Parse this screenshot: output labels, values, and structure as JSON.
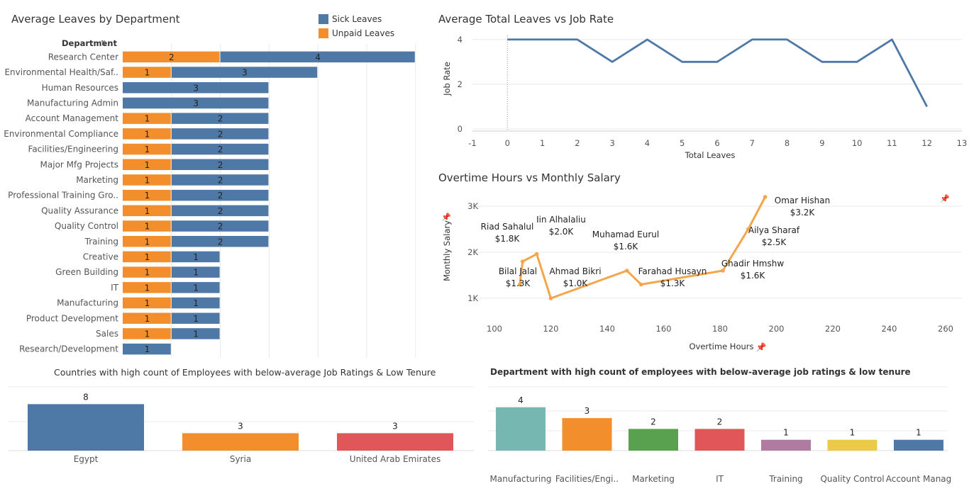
{
  "colors": {
    "sick": "#4e79a7",
    "unpaid": "#f28e2b",
    "line": "#4e79a7",
    "scatter": "#f5a54a",
    "grid": "#e8e8e8",
    "text": "#333333",
    "axis_text": "#555555"
  },
  "icons": {
    "pin": "pin-icon",
    "sort": "sort-icon"
  },
  "chart_data": [
    {
      "id": "leaves",
      "type": "bar",
      "orientation": "horizontal",
      "stacked": true,
      "title": "Average Leaves by Department",
      "ylabel": "Department",
      "legend_position": "top-right",
      "categories": [
        "Research Center",
        "Environmental Health/Saf..",
        "Human Resources",
        "Manufacturing Admin",
        "Account Management",
        "Environmental Compliance",
        "Facilities/Engineering",
        "Major Mfg Projects",
        "Marketing",
        "Professional Training Gro..",
        "Quality Assurance",
        "Quality Control",
        "Training",
        "Creative",
        "Green Building",
        "IT",
        "Manufacturing",
        "Product Development",
        "Sales",
        "Research/Development"
      ],
      "series": [
        {
          "name": "Unpaid Leaves",
          "color": "#f28e2b",
          "values": [
            2,
            1,
            0,
            0,
            1,
            1,
            1,
            1,
            1,
            1,
            1,
            1,
            1,
            1,
            1,
            1,
            1,
            1,
            1,
            0
          ]
        },
        {
          "name": "Sick Leaves",
          "color": "#4e79a7",
          "values": [
            4,
            3,
            3,
            3,
            2,
            2,
            2,
            2,
            2,
            2,
            2,
            2,
            2,
            1,
            1,
            1,
            1,
            1,
            1,
            1
          ]
        }
      ],
      "xlim": [
        0,
        6
      ]
    },
    {
      "id": "jobrate",
      "type": "line",
      "title": "Average Total Leaves vs Job Rate",
      "xlabel": "Total Leaves",
      "ylabel": "Job Rate",
      "x": [
        0,
        1,
        2,
        3,
        4,
        5,
        6,
        7,
        8,
        9,
        10,
        11,
        12
      ],
      "y": [
        4,
        4,
        4,
        3,
        4,
        3,
        3,
        4,
        4,
        3,
        3,
        4,
        1
      ],
      "xlim": [
        -1,
        13
      ],
      "ylim": [
        0,
        4.5
      ],
      "xticks": [
        -1,
        0,
        1,
        2,
        3,
        4,
        5,
        6,
        7,
        8,
        9,
        10,
        11,
        12,
        13
      ],
      "yticks": [
        0,
        2,
        4
      ],
      "grid": true
    },
    {
      "id": "overtime",
      "type": "line",
      "title": "Overtime Hours vs Monthly Salary",
      "xlabel": "Overtime Hours",
      "ylabel": "Monthly Salary",
      "xlim": [
        100,
        260
      ],
      "ylim": [
        800,
        3300
      ],
      "xticks": [
        100,
        120,
        140,
        160,
        180,
        200,
        220,
        240,
        260
      ],
      "ytick_labels": [
        "1K",
        "2K",
        "3K"
      ],
      "points": [
        {
          "x": 109,
          "y": 1300,
          "name": "Bilal Jalal",
          "value": "$1.3K"
        },
        {
          "x": 110,
          "y": 1800,
          "name": "Riad Sahalul",
          "value": "$1.8K"
        },
        {
          "x": 115,
          "y": 1960,
          "name": "Iin Alhalaliu",
          "value": "$2.0K"
        },
        {
          "x": 120,
          "y": 1000,
          "name": "Ahmad Bikri",
          "value": "$1.0K"
        },
        {
          "x": 147,
          "y": 1600,
          "name": "Muhamad Eurul",
          "value": "$1.6K"
        },
        {
          "x": 152,
          "y": 1300,
          "name": "Farahad Husayn",
          "value": "$1.3K"
        },
        {
          "x": 181,
          "y": 1600,
          "name": "Ghadir Hmshw",
          "value": "$1.6K"
        },
        {
          "x": 190,
          "y": 2500,
          "name": "Ailya Sharaf",
          "value": "$2.5K"
        },
        {
          "x": 196,
          "y": 3200,
          "name": "Omar Hishan",
          "value": "$3.2K"
        }
      ]
    },
    {
      "id": "countries",
      "type": "bar",
      "title": "Countries with high count of Employees with below-average Job Ratings & Low Tenure",
      "categories": [
        "Egypt",
        "Syria",
        "United Arab Emirates"
      ],
      "values": [
        8,
        3,
        3
      ],
      "colors": [
        "#4e79a7",
        "#f28e2b",
        "#e15759"
      ],
      "ylim": [
        0,
        9
      ]
    },
    {
      "id": "departments",
      "type": "bar",
      "title": "Department with high count of employees with below-average job ratings & low tenure",
      "categories": [
        "Manufacturing",
        "Facilities/Engi..",
        "Marketing",
        "IT",
        "Training",
        "Quality Control",
        "Account Manag"
      ],
      "values": [
        4,
        3,
        2,
        2,
        1,
        1,
        1
      ],
      "colors": [
        "#76b7b2",
        "#f28e2b",
        "#59a14f",
        "#e15759",
        "#b07aa1",
        "#edc948",
        "#4e79a7"
      ],
      "ylim": [
        0,
        4.8
      ]
    }
  ]
}
